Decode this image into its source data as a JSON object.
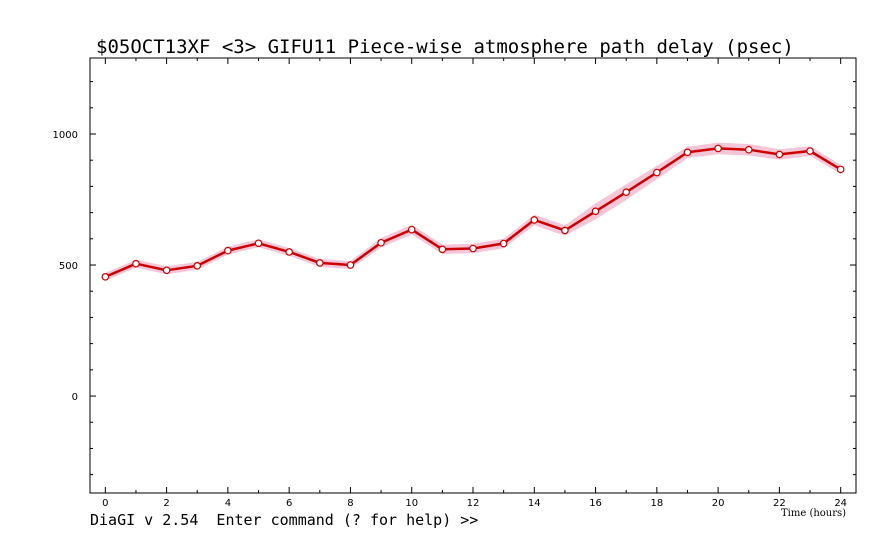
{
  "window": {
    "status_prompt": "DiaGI v 2.54  Enter command (? for help) >>"
  },
  "chart_data": {
    "type": "line",
    "title": "$05OCT13XF <3>  GIFU11    Piece-wise atmosphere path delay (psec)",
    "xlabel": "Time (hours)",
    "ylabel": "",
    "xlim": [
      -0.5,
      24.5
    ],
    "ylim": [
      -370,
      1290
    ],
    "x_ticks": [
      0,
      2,
      4,
      6,
      8,
      10,
      12,
      14,
      16,
      18,
      20,
      22,
      24
    ],
    "y_ticks": [
      0,
      500,
      1000
    ],
    "grid": false,
    "colors": {
      "line": "#cc0000",
      "band": "#f4c6d8",
      "marker_fill": "#ffffff",
      "marker_edge": "#cc0000"
    },
    "series": [
      {
        "x": [
          0,
          1,
          2,
          3,
          4,
          5,
          6,
          7,
          8,
          9,
          10,
          11,
          12,
          13,
          14,
          15,
          16,
          17,
          18,
          19,
          20,
          21,
          22,
          23,
          24
        ],
        "y": [
          455,
          505,
          480,
          497,
          555,
          583,
          550,
          508,
          500,
          585,
          635,
          560,
          563,
          582,
          672,
          632,
          705,
          778,
          853,
          930,
          945,
          940,
          922,
          935,
          865
        ],
        "error": [
          15,
          15,
          15,
          15,
          15,
          15,
          15,
          15,
          15,
          18,
          18,
          18,
          18,
          18,
          20,
          20,
          30,
          30,
          25,
          22,
          22,
          22,
          20,
          18,
          18
        ]
      }
    ]
  }
}
